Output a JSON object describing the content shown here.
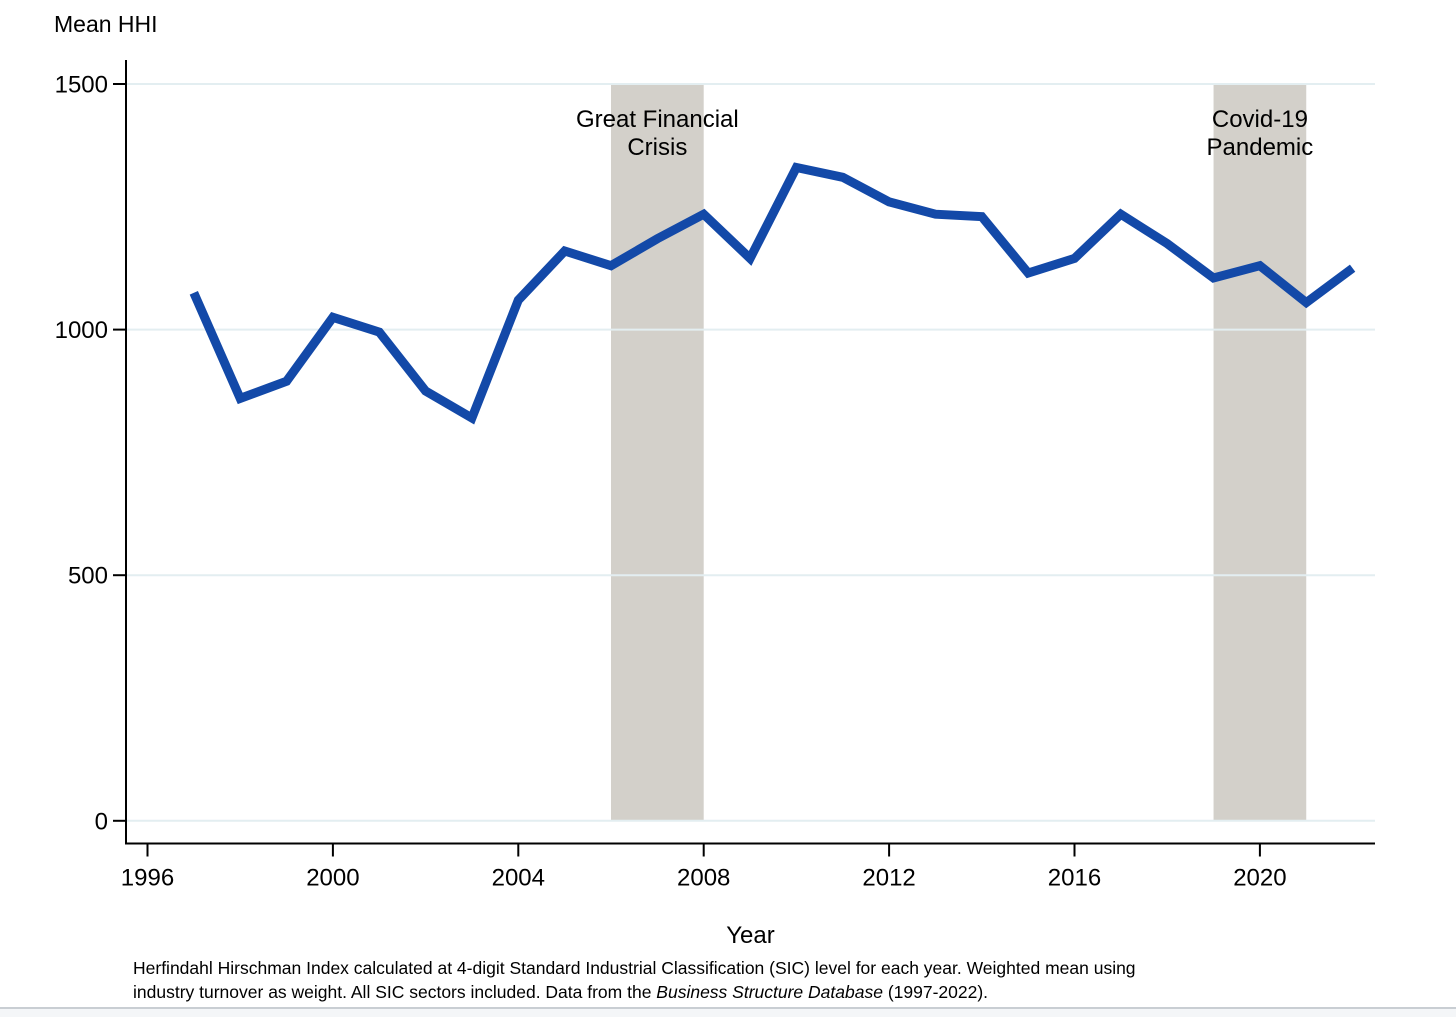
{
  "colors": {
    "line": "#1349a8",
    "band": "#d3d0ca",
    "grid": "#e3eef1",
    "axis": "#000000",
    "text": "#000000",
    "strip_bg": "#f4f6f8",
    "strip_border": "#c9ced3"
  },
  "chart_data": {
    "type": "line",
    "title": "Mean HHI",
    "xlabel": "Year",
    "ylabel": "Mean HHI",
    "x": [
      1997,
      1998,
      1999,
      2000,
      2001,
      2002,
      2003,
      2004,
      2005,
      2006,
      2007,
      2008,
      2009,
      2010,
      2011,
      2012,
      2013,
      2014,
      2015,
      2016,
      2017,
      2018,
      2019,
      2020,
      2021,
      2022
    ],
    "values": [
      1075,
      860,
      895,
      1025,
      995,
      875,
      820,
      1060,
      1160,
      1130,
      1185,
      1235,
      1145,
      1330,
      1310,
      1260,
      1235,
      1230,
      1115,
      1145,
      1235,
      1175,
      1105,
      1130,
      1055,
      1125
    ],
    "xticks": [
      1996,
      2000,
      2004,
      2008,
      2012,
      2016,
      2020
    ],
    "yticks": [
      0,
      500,
      1000,
      1500
    ],
    "ylim": [
      0,
      1500
    ],
    "xlim": [
      1995.5,
      2022.5
    ],
    "grid": true,
    "legend": "none",
    "bands": [
      {
        "x_start": 2006,
        "x_end": 2008,
        "label_lines": [
          "Great Financial",
          "Crisis"
        ]
      },
      {
        "x_start": 2019,
        "x_end": 2021,
        "label_lines": [
          "Covid-19",
          "Pandemic"
        ]
      }
    ],
    "note": {
      "line1": "Herfindahl Hirschman Index calculated at 4-digit Standard Industrial Classification (SIC) level for each year. Weighted mean using",
      "line2_prefix": "industry turnover as weight. All SIC sectors included. Data from the ",
      "line2_italic": "Business Structure Database",
      "line2_suffix": " (1997-2022)."
    }
  }
}
